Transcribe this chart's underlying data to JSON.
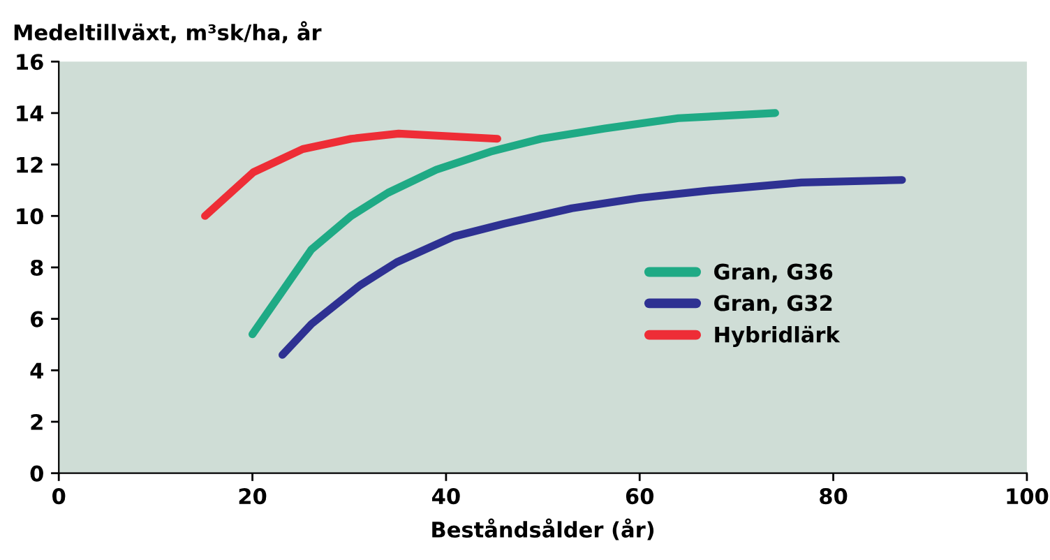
{
  "chart_data": {
    "type": "line",
    "ylabel": "Medeltillväxt, m³sk/ha, år",
    "xlabel": "Beståndsålder (år)",
    "xlim": [
      0,
      100
    ],
    "xticks": [
      0,
      20,
      40,
      60,
      80,
      100
    ],
    "ylim": [
      0,
      16
    ],
    "yticks": [
      0,
      2,
      4,
      6,
      8,
      10,
      12,
      14,
      16
    ],
    "grid": false,
    "legend": "right",
    "marker": "none",
    "line_style": "solid",
    "series": [
      {
        "name": "Gran, G36",
        "color": "#1faa85",
        "x": [
          20,
          26.1,
          30.2,
          34,
          39,
          44.6,
          49.8,
          56.4,
          64,
          74
        ],
        "values": [
          5.4,
          8.7,
          10.0,
          10.9,
          11.8,
          12.5,
          13.0,
          13.4,
          13.8,
          14.0
        ]
      },
      {
        "name": "Gran, G32",
        "color": "#2e3192",
        "x": [
          23.1,
          26.1,
          31.1,
          34.9,
          40.8,
          46,
          53,
          60,
          67.5,
          76.7,
          87.1
        ],
        "values": [
          4.6,
          5.8,
          7.3,
          8.2,
          9.2,
          9.7,
          10.3,
          10.7,
          11.0,
          11.3,
          11.4
        ]
      },
      {
        "name": "Hybridlärk",
        "color": "#ee2d36",
        "x": [
          15.1,
          20.1,
          25.2,
          30.2,
          35.1,
          45.3
        ],
        "values": [
          10.0,
          11.7,
          12.6,
          13.0,
          13.2,
          13.0
        ]
      }
    ]
  }
}
